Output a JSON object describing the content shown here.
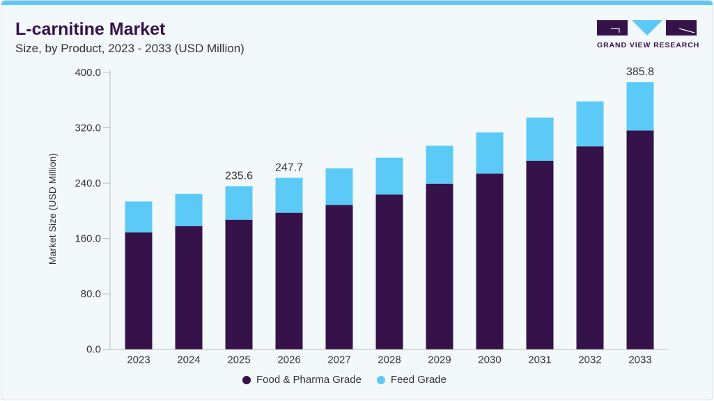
{
  "header": {
    "title": "L-carnitine Market",
    "subtitle": "Size, by Product, 2023 - 2033 (USD Million)"
  },
  "logo": {
    "text": "GRAND VIEW RESEARCH"
  },
  "colors": {
    "food_pharma": "#35124a",
    "feed": "#5bcaf7",
    "accent": "#5bc8f5"
  },
  "chart_data": {
    "type": "bar",
    "stacked": true,
    "title": "L-carnitine Market",
    "subtitle": "Size, by Product, 2023 - 2033 (USD Million)",
    "xlabel": "",
    "ylabel": "Market Size (USD Million)",
    "ylim": [
      0,
      400
    ],
    "yticks": [
      "0.0",
      "80.0",
      "160.0",
      "240.0",
      "320.0",
      "400.0"
    ],
    "categories": [
      "2023",
      "2024",
      "2025",
      "2026",
      "2027",
      "2028",
      "2029",
      "2030",
      "2031",
      "2032",
      "2033"
    ],
    "series": [
      {
        "name": "Food & Pharma Grade",
        "values": [
          169.0,
          177.9,
          187.1,
          197.2,
          208.4,
          223.6,
          239.3,
          253.8,
          272.4,
          293.2,
          316.0
        ]
      },
      {
        "name": "Feed Grade",
        "values": [
          44.5,
          46.5,
          48.5,
          50.5,
          53.0,
          53.1,
          54.8,
          59.4,
          62.4,
          64.9,
          69.8
        ]
      }
    ],
    "data_labels": {
      "2025": "235.6",
      "2026": "247.7",
      "2033": "385.8"
    },
    "legend": "bottom",
    "grid": false
  }
}
